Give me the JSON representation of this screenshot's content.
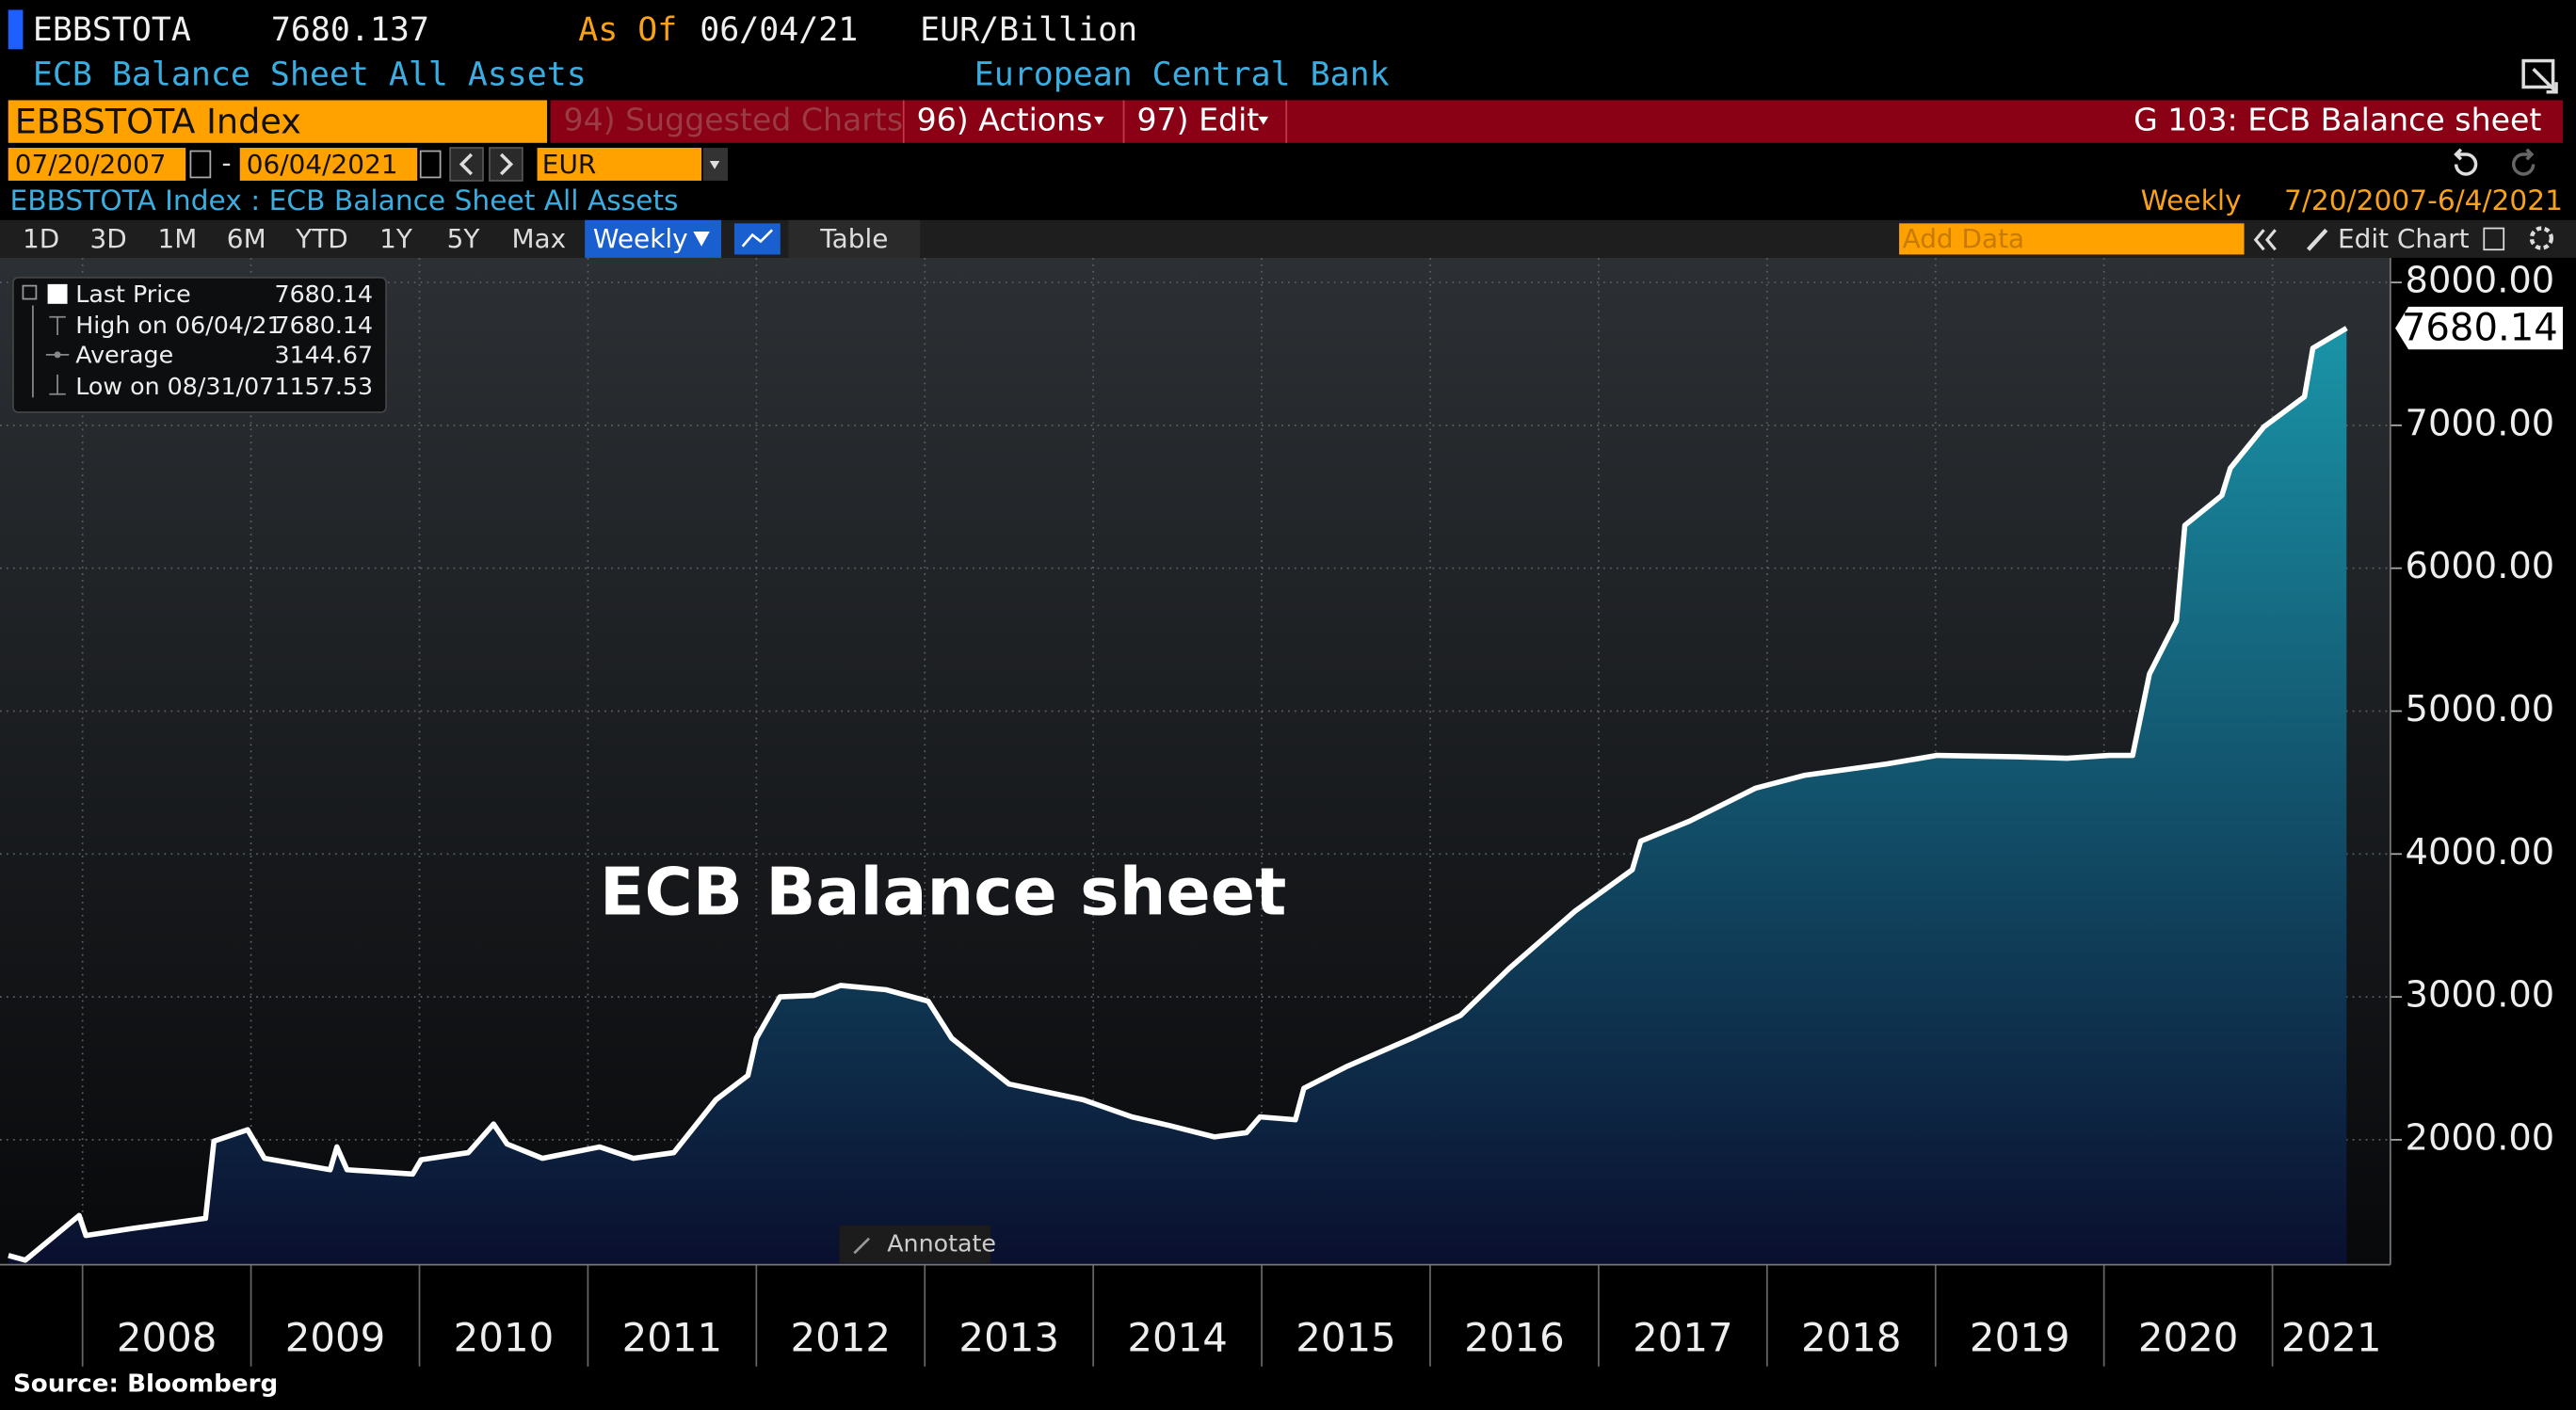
{
  "header": {
    "ticker": "EBBSTOTA",
    "last": 7680.137,
    "as_of_label": "As Of",
    "as_of": "06/04/21",
    "units": "EUR/Billion",
    "description": "ECB Balance Sheet All Assets",
    "source_name": "European Central Bank"
  },
  "command_bar": {
    "security": "EBBSTOTA Index",
    "menu": [
      "94) Suggested Charts",
      "96) Actions",
      "97) Edit"
    ],
    "page": "G 103: ECB Balance sheet"
  },
  "date_range": {
    "start": "07/20/2007",
    "separator": "-",
    "end": "06/04/2021",
    "currency": "EUR"
  },
  "chart_header": {
    "title": "EBBSTOTA Index : ECB Balance Sheet All Assets",
    "frequency": "Weekly",
    "range": "7/20/2007-6/4/2021"
  },
  "toolbar": {
    "periods": [
      "1D",
      "3D",
      "1M",
      "6M",
      "YTD",
      "1Y",
      "5Y",
      "Max"
    ],
    "frequency": "Weekly",
    "view": "Table",
    "add_data": "Add Data",
    "edit": "Edit Chart"
  },
  "chart_data": {
    "type": "area",
    "annotation": "ECB Balance sheet",
    "legend": [
      {
        "label": "Last Price",
        "value": 7680.14
      },
      {
        "label": "High on 06/04/21",
        "value": 7680.14
      },
      {
        "label": "Average",
        "value": 3144.67
      },
      {
        "label": "Low on 08/31/07",
        "value": 1157.53
      }
    ],
    "x": [
      2007.56,
      2007.66,
      2007.98,
      2008.02,
      2008.3,
      2008.73,
      2008.78,
      2008.98,
      2009.08,
      2009.47,
      2009.51,
      2009.57,
      2009.96,
      2010.01,
      2010.29,
      2010.44,
      2010.52,
      2010.73,
      2011.07,
      2011.27,
      2011.51,
      2011.76,
      2011.95,
      2012.0,
      2012.14,
      2012.34,
      2012.5,
      2012.77,
      2013.02,
      2013.16,
      2013.5,
      2013.94,
      2014.23,
      2014.45,
      2014.72,
      2014.91,
      2014.99,
      2015.2,
      2015.25,
      2015.5,
      2015.89,
      2016.18,
      2016.47,
      2016.86,
      2017.2,
      2017.25,
      2017.54,
      2017.93,
      2018.22,
      2018.71,
      2019.01,
      2019.49,
      2019.78,
      2020.03,
      2020.17,
      2020.27,
      2020.43,
      2020.48,
      2020.7,
      2020.75,
      2020.95,
      2021.19,
      2021.24,
      2021.44
    ],
    "values": [
      1190,
      1157.53,
      1470,
      1330,
      1380,
      1450,
      1990,
      2070,
      1870,
      1790,
      1950,
      1790,
      1760,
      1860,
      1910,
      2110,
      1970,
      1870,
      1950,
      1870,
      1910,
      2280,
      2450,
      2710,
      3000,
      3010,
      3080,
      3050,
      2970,
      2710,
      2390,
      2280,
      2160,
      2100,
      2020,
      2050,
      2160,
      2140,
      2360,
      2510,
      2710,
      2870,
      3200,
      3600,
      3890,
      4090,
      4230,
      4460,
      4550,
      4630,
      4690,
      4680,
      4670,
      4690,
      4690,
      5260,
      5630,
      6300,
      6510,
      6700,
      6990,
      7200,
      7540,
      7680.14
    ],
    "line_color": "#ffffff",
    "fill_top": "#1a94a8",
    "fill_bottom": "#0a0f2e",
    "xlim": [
      2007.51,
      2021.7
    ],
    "xticks": [
      2008,
      2009,
      2010,
      2011,
      2012,
      2013,
      2014,
      2015,
      2016,
      2017,
      2018,
      2019,
      2020,
      2021
    ],
    "ylim": [
      1126,
      8172
    ],
    "yticks": [
      {
        "value": 2000,
        "label": "2000.00"
      },
      {
        "value": 3000,
        "label": "3000.00"
      },
      {
        "value": 4000,
        "label": "4000.00"
      },
      {
        "value": 5000,
        "label": "5000.00"
      },
      {
        "value": 6000,
        "label": "6000.00"
      },
      {
        "value": 7000,
        "label": "7000.00"
      },
      {
        "value": 8000,
        "label": "8000.00"
      }
    ],
    "grid": true
  },
  "annotate_button": "Annotate",
  "source": "Source: Bloomberg"
}
